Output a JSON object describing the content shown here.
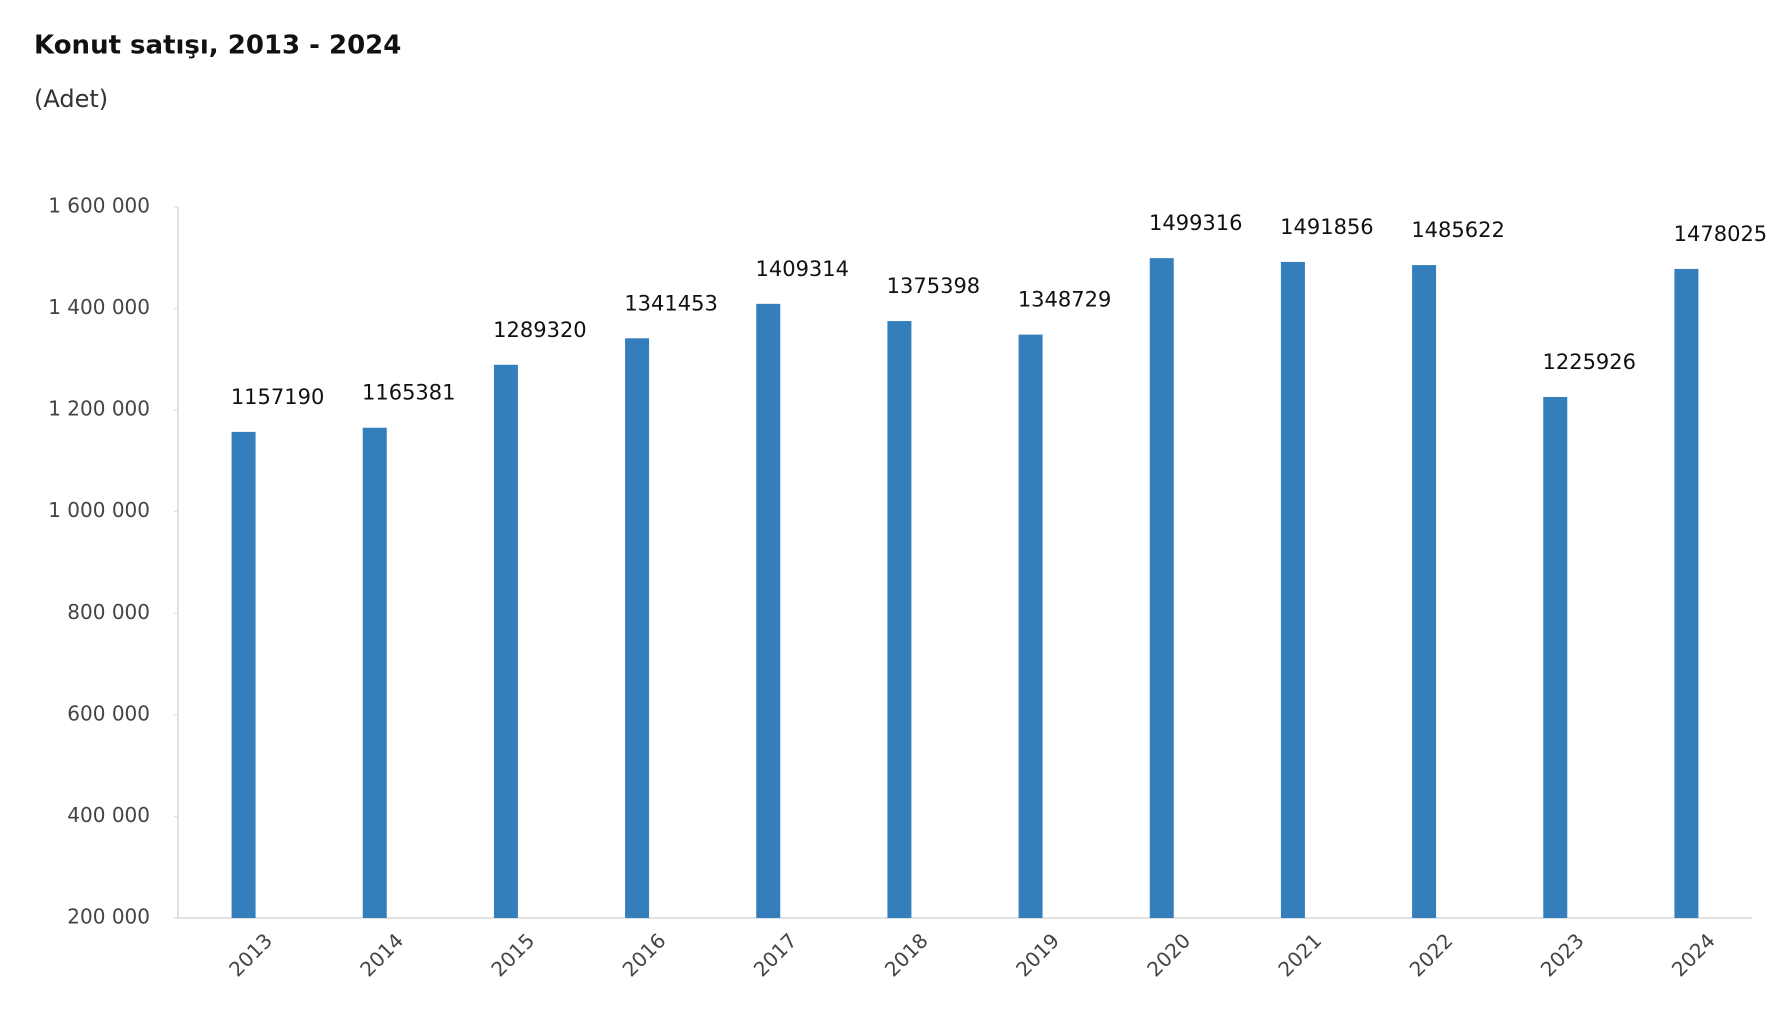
{
  "chart_data": {
    "type": "bar",
    "title": "Konut satışı, 2013 - 2024",
    "subtitle": "(Adet)",
    "categories": [
      "2013",
      "2014",
      "2015",
      "2016",
      "2017",
      "2018",
      "2019",
      "2020",
      "2021",
      "2022",
      "2023",
      "2024"
    ],
    "values": [
      1157190,
      1165381,
      1289320,
      1341453,
      1409314,
      1375398,
      1348729,
      1499316,
      1491856,
      1485622,
      1225926,
      1478025
    ],
    "color": "#337ebb",
    "ylim": [
      200000,
      1600000
    ],
    "yticks": [
      {
        "value": 200000,
        "label": "200 000"
      },
      {
        "value": 400000,
        "label": "400 000"
      },
      {
        "value": 600000,
        "label": "600 000"
      },
      {
        "value": 800000,
        "label": "800 000"
      },
      {
        "value": 1000000,
        "label": "1 000 000"
      },
      {
        "value": 1200000,
        "label": "1 200 000"
      },
      {
        "value": 1400000,
        "label": "1 400 000"
      },
      {
        "value": 1600000,
        "label": "1 600 000"
      }
    ],
    "grid": false
  }
}
